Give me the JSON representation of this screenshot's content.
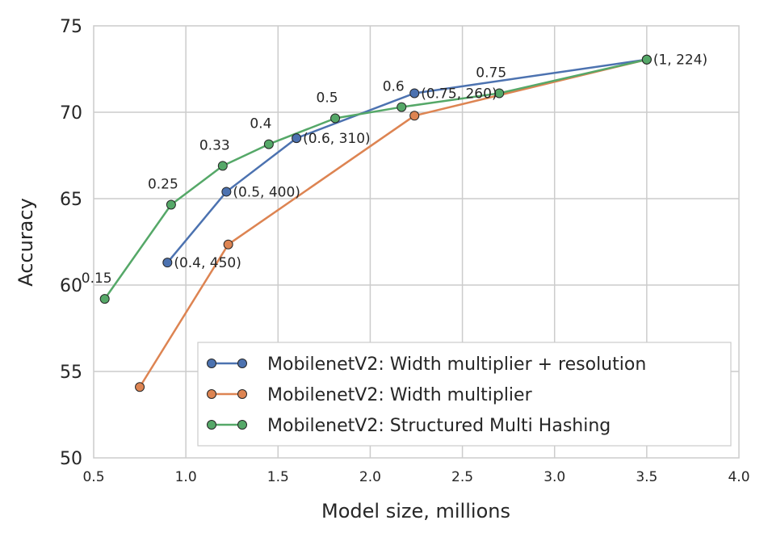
{
  "chart_data": {
    "type": "line",
    "title": "",
    "xlabel": "Model size, millions",
    "ylabel": "Accuracy",
    "xlim": [
      0.5,
      4.0
    ],
    "ylim": [
      50,
      75
    ],
    "grid": true,
    "xticks": [
      0.5,
      1.0,
      1.5,
      2.0,
      2.5,
      3.0,
      3.5,
      4.0
    ],
    "xtick_labels": [
      "0.5",
      "1.0",
      "1.5",
      "2.0",
      "2.5",
      "3.0",
      "3.5",
      "4.0"
    ],
    "yticks": [
      50,
      55,
      60,
      65,
      70,
      75
    ],
    "ytick_labels": [
      "50",
      "55",
      "60",
      "65",
      "70",
      "75"
    ],
    "legend_position": "bottom-right",
    "series": [
      {
        "name": "MobilenetV2: Width multiplier + resolution",
        "color": "#4c72b0",
        "x": [
          0.9,
          1.22,
          1.6,
          2.24,
          3.5
        ],
        "y": [
          61.3,
          65.4,
          68.5,
          71.1,
          73.05
        ],
        "point_labels": [
          "(0.4, 450)",
          "(0.5, 400)",
          "(0.6, 310)",
          "(0.75, 260)",
          "(1, 224)"
        ],
        "label_side": "right"
      },
      {
        "name": "MobilenetV2: Width multiplier",
        "color": "#dd8452",
        "x": [
          0.75,
          1.23,
          2.24,
          3.5
        ],
        "y": [
          54.1,
          62.35,
          69.8,
          73.05
        ],
        "point_labels": [],
        "label_side": "none"
      },
      {
        "name": "MobilenetV2: Structured Multi Hashing",
        "color": "#55a868",
        "x": [
          0.56,
          0.92,
          1.2,
          1.45,
          1.81,
          2.17,
          2.7,
          3.5
        ],
        "y": [
          59.2,
          64.65,
          66.9,
          68.15,
          69.65,
          70.3,
          71.1,
          73.05
        ],
        "point_labels": [
          "0.15",
          "0.25",
          "0.33",
          "0.4",
          "0.5",
          "0.6",
          "0.75",
          ""
        ],
        "label_side": "above"
      }
    ]
  }
}
